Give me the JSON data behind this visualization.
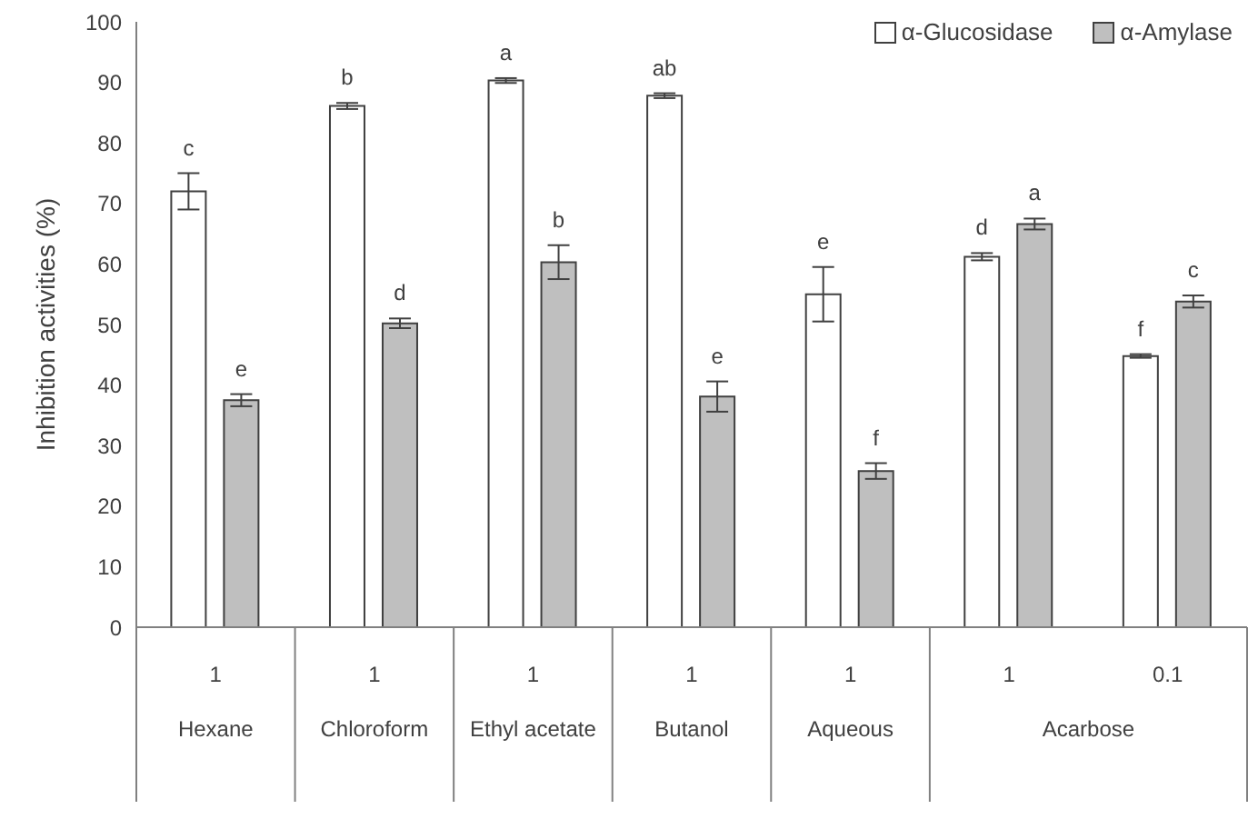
{
  "chart_data": {
    "type": "bar",
    "ylabel": "Inhibition activities (%)",
    "categories": [
      "1",
      "1",
      "1",
      "1",
      "1",
      "1",
      "0.1"
    ],
    "annotations": [
      "Hexane",
      "Chloroform",
      "Ethyl acetate",
      "Butanol",
      "Aqueous",
      "Acarbose"
    ],
    "series": [
      {
        "name": "α-Glucosidase",
        "color": "#ffffff",
        "values": [
          72,
          86.1,
          90.3,
          87.8,
          55,
          61.2,
          44.8
        ],
        "errors": [
          3,
          0.5,
          0.4,
          0.4,
          4.5,
          0.6,
          0.3
        ],
        "value_labels": [
          "c",
          "b",
          "a",
          "ab",
          "e",
          "d",
          "f"
        ]
      },
      {
        "name": "α-Amylase",
        "color": "#bfbfbf",
        "values": [
          37.5,
          50.2,
          60.3,
          38.1,
          25.8,
          66.6,
          53.8
        ],
        "errors": [
          1,
          0.8,
          2.8,
          2.5,
          1.3,
          0.9,
          1
        ],
        "value_labels": [
          "e",
          "d",
          "b",
          "e",
          "f",
          "a",
          "c"
        ]
      }
    ],
    "ylim": [
      0,
      100
    ],
    "yticks": [
      0,
      10,
      20,
      30,
      40,
      50,
      60,
      70,
      80,
      90,
      100
    ],
    "grid": false,
    "legend": "top right"
  }
}
